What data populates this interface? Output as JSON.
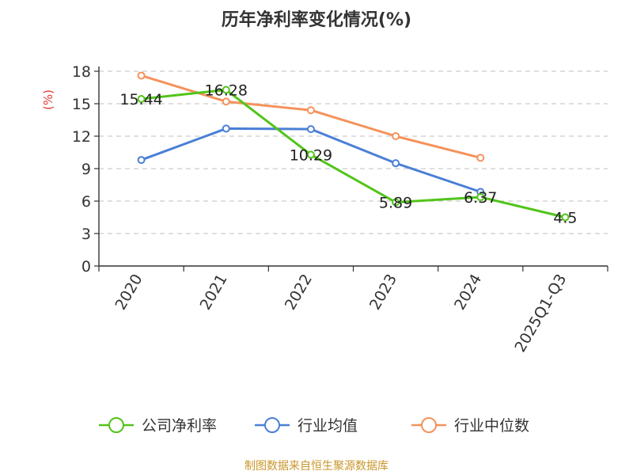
{
  "chart_data": {
    "type": "line",
    "title": "历年净利率变化情况(%)",
    "ylabel": "(%)",
    "categories": [
      "2020",
      "2021",
      "2022",
      "2023",
      "2024",
      "2025Q1-Q3"
    ],
    "yticks": [
      0,
      3,
      6,
      9,
      12,
      15,
      18
    ],
    "ylim": [
      0,
      18
    ],
    "grid": true,
    "legend_position": "bottom",
    "series": [
      {
        "name": "公司净利率",
        "color": "#52c41a",
        "values": [
          15.44,
          16.28,
          10.29,
          5.89,
          6.37,
          4.5
        ],
        "labels": [
          "15.44",
          "16.28",
          "10.29",
          "5.89",
          "6.37",
          "4.5"
        ]
      },
      {
        "name": "行业均值",
        "color": "#4a7fd6",
        "values": [
          9.8,
          12.7,
          12.65,
          9.5,
          6.85,
          null
        ]
      },
      {
        "name": "行业中位数",
        "color": "#f4925b",
        "values": [
          17.6,
          15.2,
          14.4,
          12.0,
          10.0,
          null
        ]
      }
    ],
    "source": "制图数据来自恒生聚源数据库",
    "unit_color": "#e53935",
    "source_color": "#c8962a"
  }
}
